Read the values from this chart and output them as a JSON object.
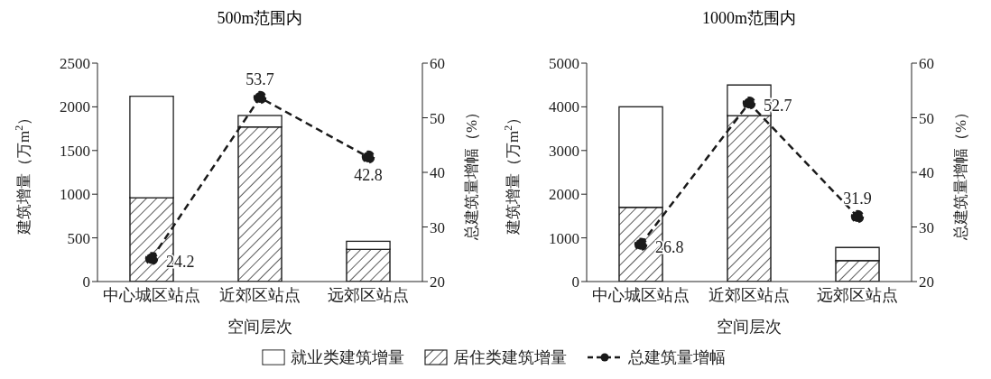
{
  "chart_data": [
    {
      "type": "bar",
      "title": "500m范围内",
      "xlabel": "空间层次",
      "ylabel": "建筑增量（万m$^{2}$）",
      "y2label": "总建筑量增幅（%）",
      "categories": [
        "中心城区站点",
        "近郊区站点",
        "远郊区站点"
      ],
      "stacked": true,
      "legend": "bottom",
      "line_style": "dashed",
      "marker": "circle",
      "ylim": [
        0,
        2500
      ],
      "yticks": [
        0,
        500,
        1000,
        1500,
        2000,
        2500
      ],
      "y2lim": [
        20,
        60
      ],
      "y2ticks": [
        20,
        30,
        40,
        50,
        60
      ],
      "series": [
        {
          "name": "居住类建筑增量",
          "color": "#333333",
          "values": [
            960,
            1770,
            370
          ]
        },
        {
          "name": "就业类建筑增量",
          "color": "#ffffff",
          "values": [
            1160,
            130,
            90
          ]
        },
        {
          "name": "总建筑量增幅",
          "type": "line",
          "axis": "y2",
          "color": "#1a1a1a",
          "values": [
            24.2,
            53.7,
            42.8
          ],
          "value_labels": [
            "24.2",
            "53.7",
            "42.8"
          ]
        }
      ]
    },
    {
      "type": "bar",
      "title": "1000m范围内",
      "xlabel": "空间层次",
      "ylabel": "建筑增量（万m$^{2}$）",
      "y2label": "总建筑量增幅（%）",
      "categories": [
        "中心城区站点",
        "近郊区站点",
        "远郊区站点"
      ],
      "stacked": true,
      "line_style": "dashed",
      "marker": "circle",
      "ylim": [
        0,
        5000
      ],
      "yticks": [
        0,
        1000,
        2000,
        3000,
        4000,
        5000
      ],
      "y2lim": [
        20,
        60
      ],
      "y2ticks": [
        20,
        30,
        40,
        50,
        60
      ],
      "series": [
        {
          "color": "#333333",
          "values": [
            1700,
            3800,
            480
          ]
        },
        {
          "color": "#ffffff",
          "values": [
            2300,
            700,
            300
          ]
        },
        {
          "type": "line",
          "axis": "y2",
          "color": "#1a1a1a",
          "values": [
            26.8,
            52.7,
            31.9
          ],
          "value_labels": [
            "26.8",
            "52.7",
            "31.9"
          ]
        }
      ]
    }
  ]
}
